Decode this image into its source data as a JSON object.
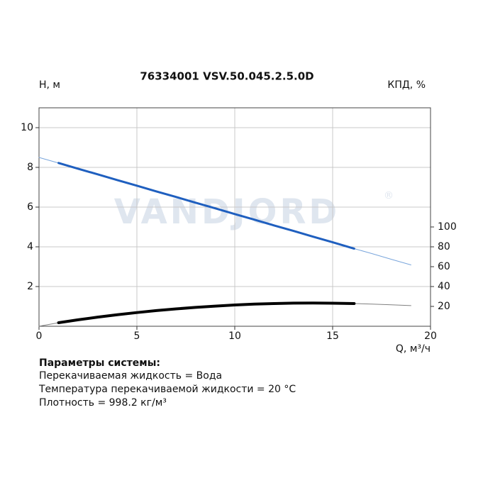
{
  "chart_data": {
    "type": "line",
    "title": "76334001 VSV.50.045.2.5.0D",
    "ylabel": "H, м",
    "y2label": "КПД, %",
    "xlabel": "Q, м³/ч",
    "watermark": "VANDJORD",
    "watermark_mark": "®",
    "x": [
      0,
      1,
      2,
      3,
      4,
      5,
      6,
      7,
      8,
      9,
      10,
      11,
      12,
      13,
      14,
      15,
      16.1,
      17,
      18,
      19
    ],
    "series": [
      {
        "color": "#7aa6dc",
        "width": 1,
        "values": [
          8.5,
          8.22,
          7.93,
          7.65,
          7.36,
          7.08,
          6.79,
          6.51,
          6.22,
          5.94,
          5.65,
          5.37,
          5.08,
          4.8,
          4.51,
          4.23,
          3.91,
          3.66,
          3.37,
          3.09
        ]
      },
      {
        "color": "#1f5fbf",
        "width": 3,
        "values": [
          null,
          8.22,
          7.93,
          7.65,
          7.36,
          7.08,
          6.79,
          6.51,
          6.22,
          5.94,
          5.65,
          5.37,
          5.08,
          4.8,
          4.51,
          4.23,
          3.91,
          null,
          null,
          null
        ]
      },
      {
        "color": "#808080",
        "width": 1,
        "axis": "y2",
        "values": [
          0,
          3.6,
          6.5,
          9.2,
          11.6,
          13.8,
          15.8,
          17.5,
          19.0,
          20.3,
          21.4,
          22.3,
          22.9,
          23.3,
          23.4,
          23.2,
          22.9,
          22.3,
          21.6,
          20.8
        ]
      },
      {
        "color": "#000000",
        "width": 4,
        "axis": "y2",
        "values": [
          null,
          3.6,
          6.5,
          9.2,
          11.6,
          13.8,
          15.8,
          17.5,
          19.0,
          20.3,
          21.4,
          22.3,
          22.9,
          23.3,
          23.4,
          23.2,
          22.9,
          null,
          null,
          null
        ]
      }
    ],
    "xlim": [
      0,
      20
    ],
    "xticks": [
      0,
      5,
      10,
      15,
      20
    ],
    "ylim": [
      0,
      11
    ],
    "yticks": [
      2,
      4,
      6,
      8,
      10
    ],
    "y2lim": [
      0,
      220
    ],
    "y2ticks": [
      20,
      40,
      60,
      80,
      100
    ],
    "grid": true
  },
  "parameters": {
    "heading": "Параметры системы:",
    "lines": [
      "Перекачиваемая жидкость = Вода",
      "Температура перекачиваемой жидкости = 20 °C",
      "Плотность = 998.2 кг/м³"
    ]
  }
}
